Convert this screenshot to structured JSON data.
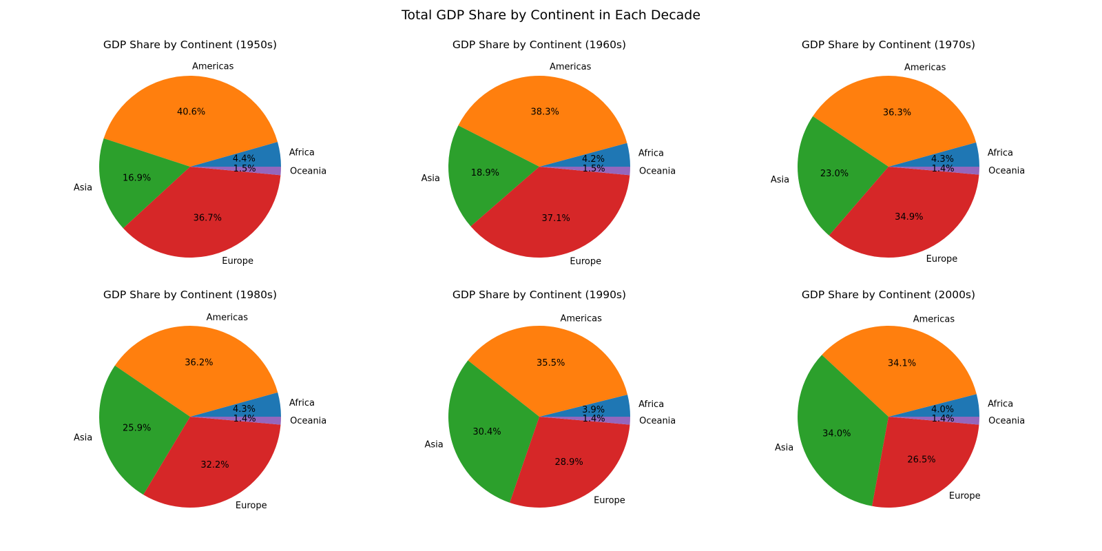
{
  "page": {
    "suptitle": "Total GDP Share by Continent in Each Decade"
  },
  "colors": {
    "Africa": "#1f77b4",
    "Americas": "#ff7f0e",
    "Asia": "#2ca02c",
    "Europe": "#d62728",
    "Oceania": "#9467bd"
  },
  "chart_data": [
    {
      "type": "pie",
      "title": "GDP Share by Continent (1950s)",
      "labels": [
        "Africa",
        "Americas",
        "Asia",
        "Europe",
        "Oceania"
      ],
      "values": [
        4.4,
        40.6,
        16.9,
        36.7,
        1.5
      ],
      "value_labels": [
        "4.4%",
        "40.6%",
        "16.9%",
        "36.7%",
        "1.5%"
      ]
    },
    {
      "type": "pie",
      "title": "GDP Share by Continent (1960s)",
      "labels": [
        "Africa",
        "Americas",
        "Asia",
        "Europe",
        "Oceania"
      ],
      "values": [
        4.2,
        38.3,
        18.9,
        37.1,
        1.5
      ],
      "value_labels": [
        "4.2%",
        "38.3%",
        "18.9%",
        "37.1%",
        "1.5%"
      ]
    },
    {
      "type": "pie",
      "title": "GDP Share by Continent (1970s)",
      "labels": [
        "Africa",
        "Americas",
        "Asia",
        "Europe",
        "Oceania"
      ],
      "values": [
        4.3,
        36.3,
        23.0,
        34.9,
        1.4
      ],
      "value_labels": [
        "4.3%",
        "36.3%",
        "23.0%",
        "34.9%",
        "1.4%"
      ]
    },
    {
      "type": "pie",
      "title": "GDP Share by Continent (1980s)",
      "labels": [
        "Africa",
        "Americas",
        "Asia",
        "Europe",
        "Oceania"
      ],
      "values": [
        4.3,
        36.2,
        25.9,
        32.2,
        1.4
      ],
      "value_labels": [
        "4.3%",
        "36.2%",
        "25.9%",
        "32.2%",
        "1.4%"
      ]
    },
    {
      "type": "pie",
      "title": "GDP Share by Continent (1990s)",
      "labels": [
        "Africa",
        "Americas",
        "Asia",
        "Europe",
        "Oceania"
      ],
      "values": [
        3.9,
        35.5,
        30.4,
        28.9,
        1.4
      ],
      "value_labels": [
        "3.9%",
        "35.5%",
        "30.4%",
        "28.9%",
        "1.4%"
      ]
    },
    {
      "type": "pie",
      "title": "GDP Share by Continent (2000s)",
      "labels": [
        "Africa",
        "Americas",
        "Asia",
        "Europe",
        "Oceania"
      ],
      "values": [
        4.0,
        34.1,
        34.0,
        26.5,
        1.4
      ],
      "value_labels": [
        "4.0%",
        "34.1%",
        "34.0%",
        "26.5%",
        "1.4%"
      ]
    }
  ]
}
